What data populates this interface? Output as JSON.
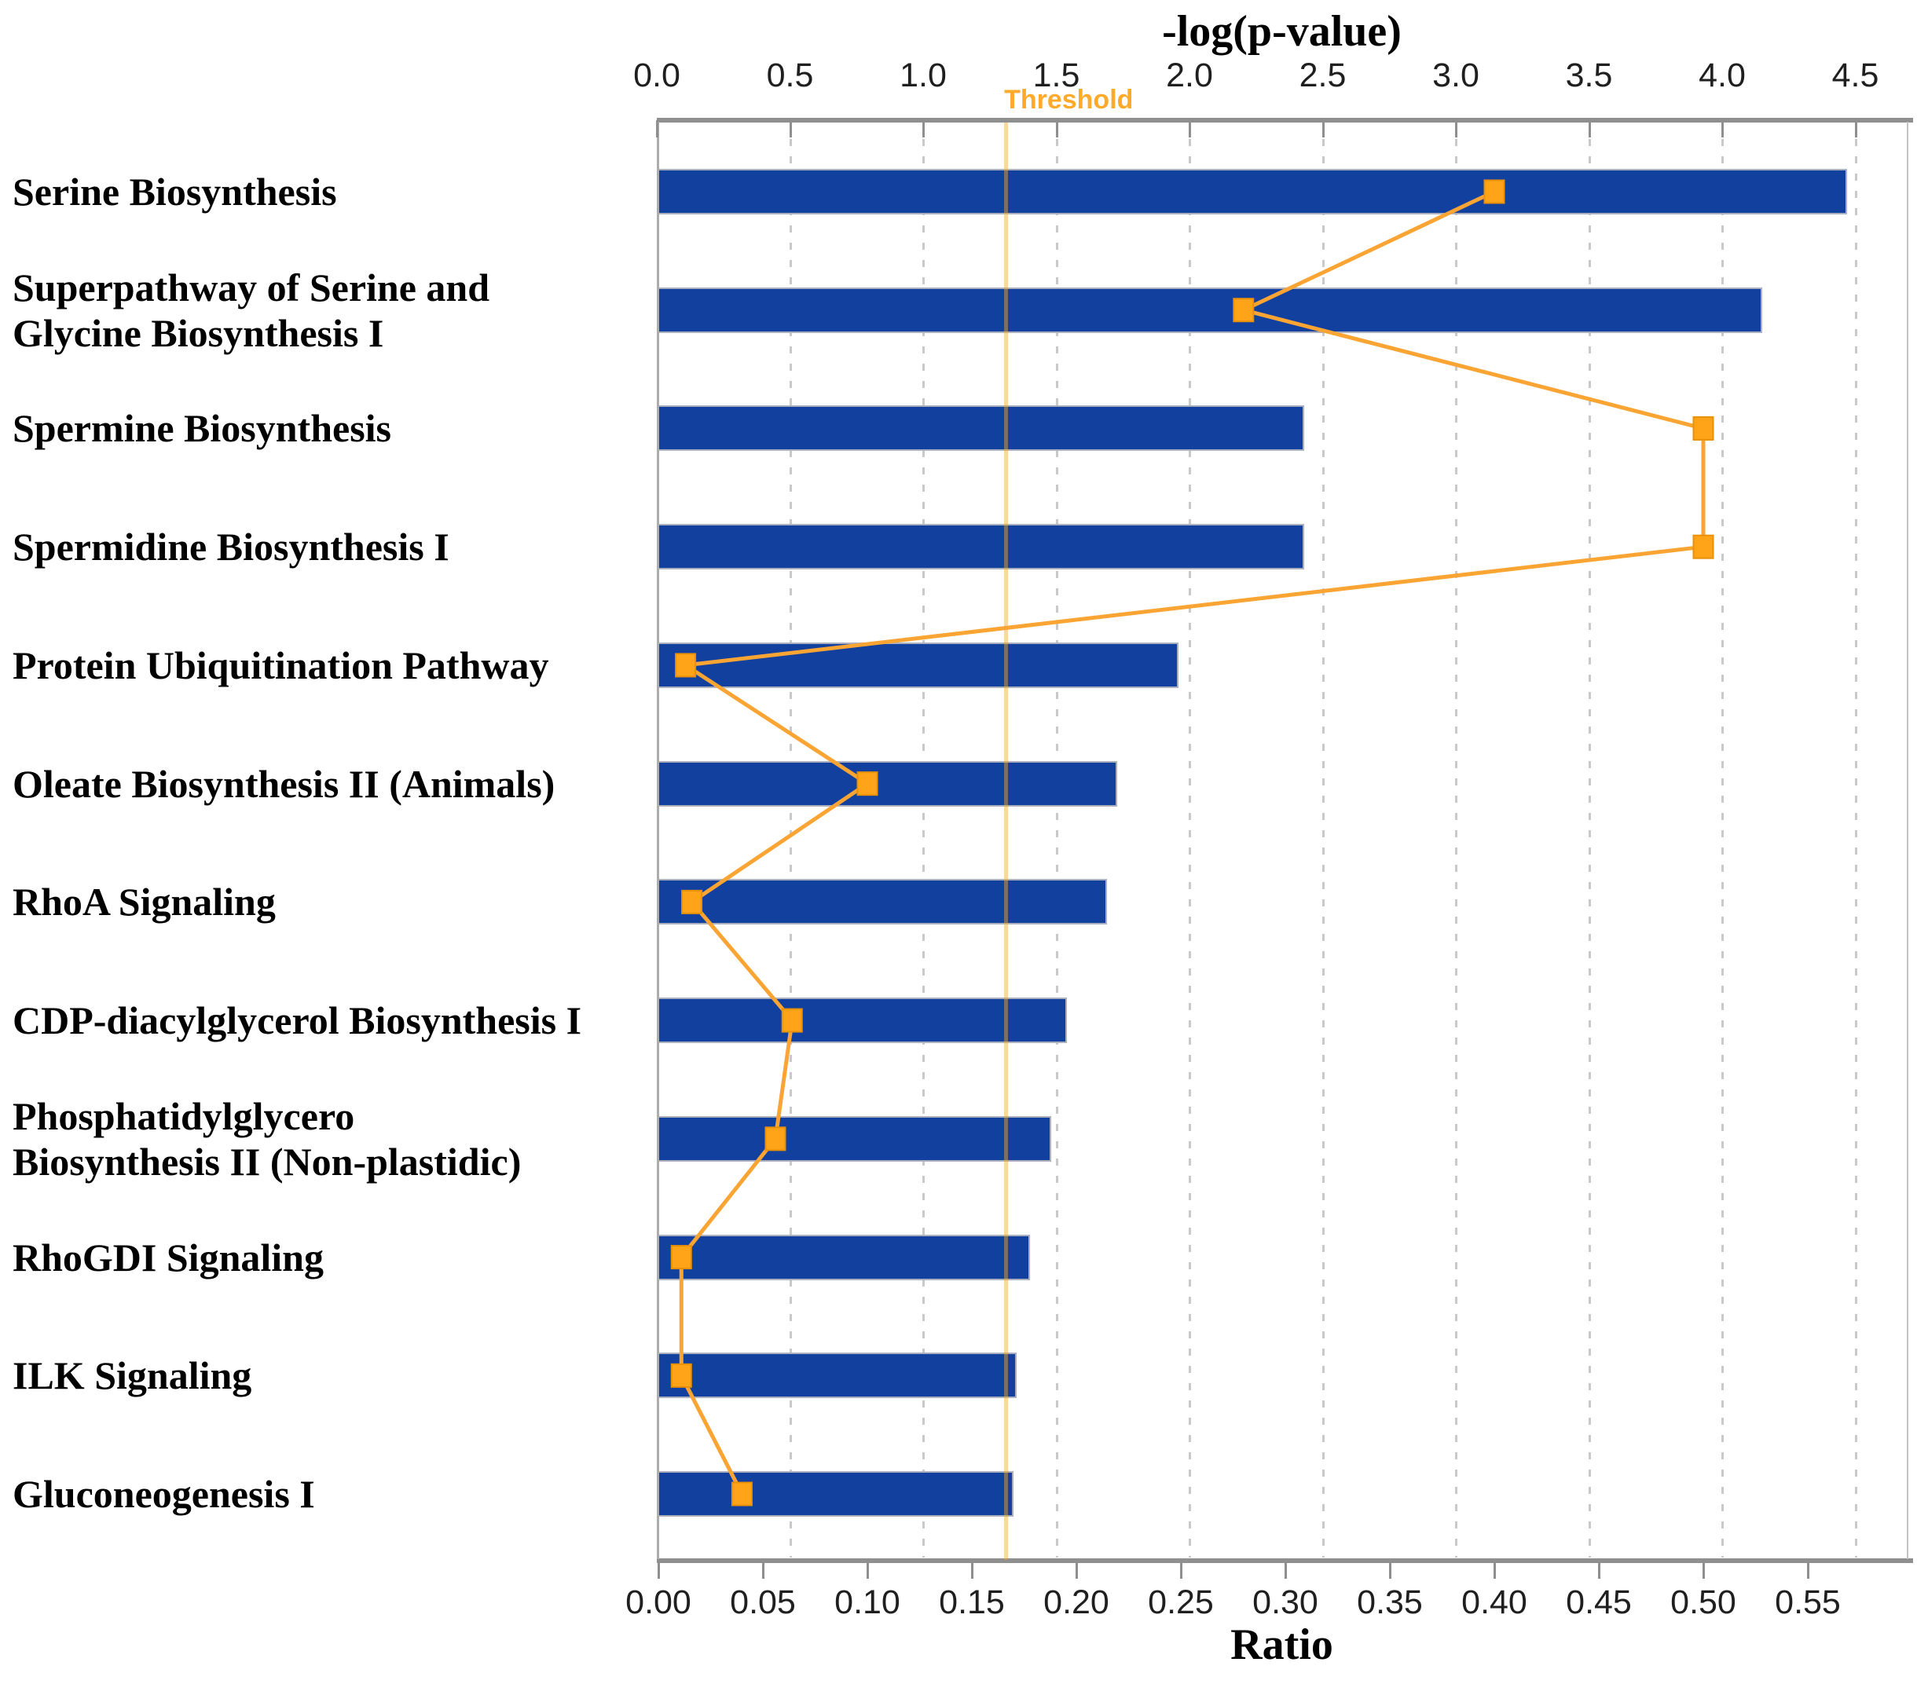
{
  "chart_data": {
    "type": "bar",
    "subtype": "horizontal-bars-with-line-overlay-dual-axis",
    "categories": [
      "Serine Biosynthesis",
      "Superpathway of Serine and\nGlycine Biosynthesis I",
      "Spermine Biosynthesis",
      "Spermidine Biosynthesis I",
      "Protein Ubiquitination Pathway",
      "Oleate Biosynthesis II (Animals)",
      "RhoA Signaling",
      "CDP-diacylglycerol Biosynthesis I",
      "Phosphatidylglycero\nBiosynthesis II (Non-plastidic)",
      "RhoGDI Signaling",
      "ILK Signaling",
      "Gluconeogenesis I"
    ],
    "series": [
      {
        "name": "-log(p-value)",
        "type": "bar",
        "axis": "top",
        "values": [
          4.47,
          4.15,
          2.43,
          2.43,
          1.96,
          1.73,
          1.69,
          1.54,
          1.48,
          1.4,
          1.35,
          1.34
        ]
      },
      {
        "name": "Ratio",
        "type": "line",
        "axis": "bottom",
        "values": [
          0.4,
          0.28,
          0.5,
          0.5,
          0.013,
          0.1,
          0.016,
          0.064,
          0.056,
          0.011,
          0.011,
          0.04
        ]
      }
    ],
    "top_axis": {
      "title": "-log(p-value)",
      "min": 0,
      "max": 4.5,
      "tick_step": 0.5,
      "tick_labels": [
        "0.0",
        "0.5",
        "1.0",
        "1.5",
        "2.0",
        "2.5",
        "3.0",
        "3.5",
        "4.0",
        "4.5"
      ]
    },
    "bottom_axis": {
      "title": "Ratio",
      "min": 0,
      "max": 0.55,
      "tick_step": 0.05,
      "tick_labels": [
        "0.00",
        "0.05",
        "0.10",
        "0.15",
        "0.20",
        "0.25",
        "0.30",
        "0.35",
        "0.40",
        "0.45",
        "0.50",
        "0.55"
      ]
    },
    "threshold": {
      "label": "Threshold",
      "value": 1.31,
      "axis": "top"
    },
    "grid": "vertical-dashed-at-top-axis-ticks",
    "legend_position": "none",
    "colors": {
      "bar": "#12409E",
      "bar_border": "#AAB0C0",
      "line": "#F9A433",
      "marker": "#FFA318",
      "marker_border": "#E89107",
      "threshold_line_rgba": "rgba(250,166,40,0.45)",
      "threshold_label": "#FFAA2B",
      "axis_line": "#8F8F8F",
      "grid_line": "#C9C9C9",
      "tick_label": "#1F1F1F",
      "category_label": "#000000"
    }
  }
}
